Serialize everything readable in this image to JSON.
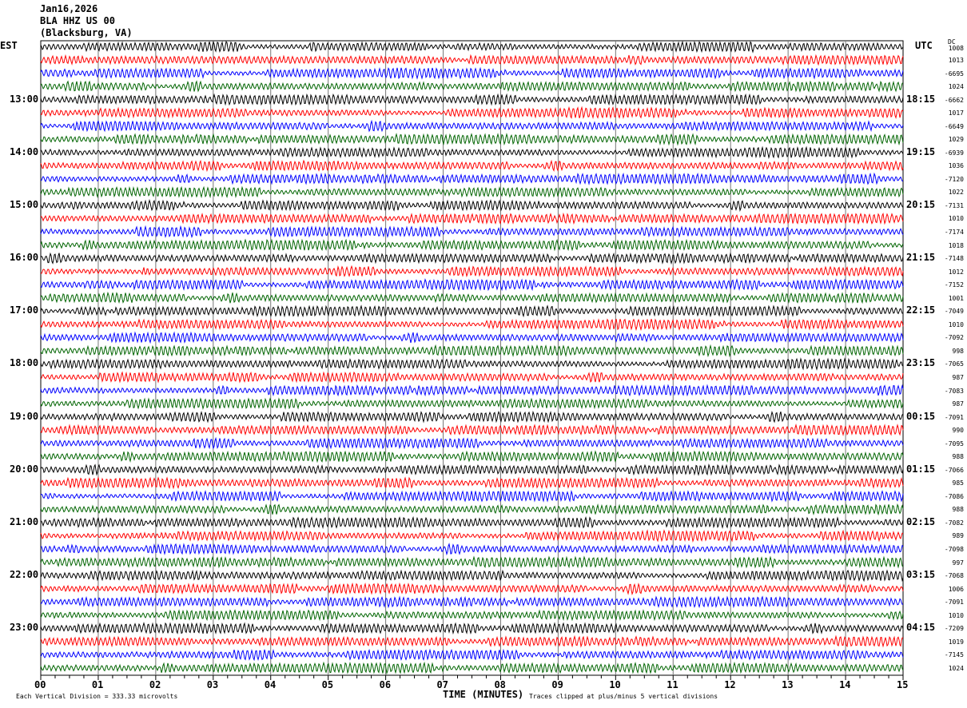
{
  "header": {
    "date": "Jan16,2026",
    "station": "BLA HHZ US 00",
    "location": "(Blacksburg, VA)"
  },
  "left_timezone": "EST",
  "right_timezone": "UTC",
  "dc_header": "DC",
  "footer": {
    "scale_note": "Each Vertical Division =  333.33 microvolts",
    "xlabel": "TIME (MINUTES)",
    "clip_note": "Traces clipped at plus/minus 5 vertical divisions"
  },
  "chart_data": {
    "type": "line",
    "title": "",
    "xlabel": "TIME (MINUTES)",
    "xlim": [
      0,
      15
    ],
    "x_ticks": [
      "00",
      "01",
      "02",
      "03",
      "04",
      "05",
      "06",
      "07",
      "08",
      "09",
      "10",
      "11",
      "12",
      "13",
      "14",
      "15"
    ],
    "trace_count": 48,
    "minutes_per_trace": 15,
    "trace_colors": [
      "#000000",
      "#ff0000",
      "#0000ff",
      "#006400"
    ],
    "grid": "vertical lines each minute",
    "left_hour_labels": [
      "13:00",
      "14:00",
      "15:00",
      "16:00",
      "17:00",
      "18:00",
      "19:00",
      "20:00",
      "21:00",
      "22:00",
      "23:00"
    ],
    "right_hour_labels": [
      "18:15",
      "19:15",
      "20:15",
      "21:15",
      "22:15",
      "23:15",
      "00:15",
      "01:15",
      "02:15",
      "03:15",
      "04:15"
    ],
    "dc_offsets": [
      "1008",
      "1013",
      "-6695",
      "1024",
      "-6662",
      "1017",
      "-6649",
      "1029",
      "-6939",
      "1036",
      "-7120",
      "1022",
      "-7131",
      "1010",
      "-7174",
      "1018",
      "-7148",
      "1012",
      "-7152",
      "1001",
      "-7049",
      "1010",
      "-7092",
      "998",
      "-7065",
      "987",
      "-7083",
      "987",
      "-7091",
      "990",
      "-7095",
      "988",
      "-7066",
      "985",
      "-7086",
      "988",
      "-7082",
      "989",
      "-7098",
      "997",
      "-7068",
      "1006",
      "-7091",
      "1010",
      "-7209",
      "1019",
      "-7145",
      "1024"
    ]
  }
}
